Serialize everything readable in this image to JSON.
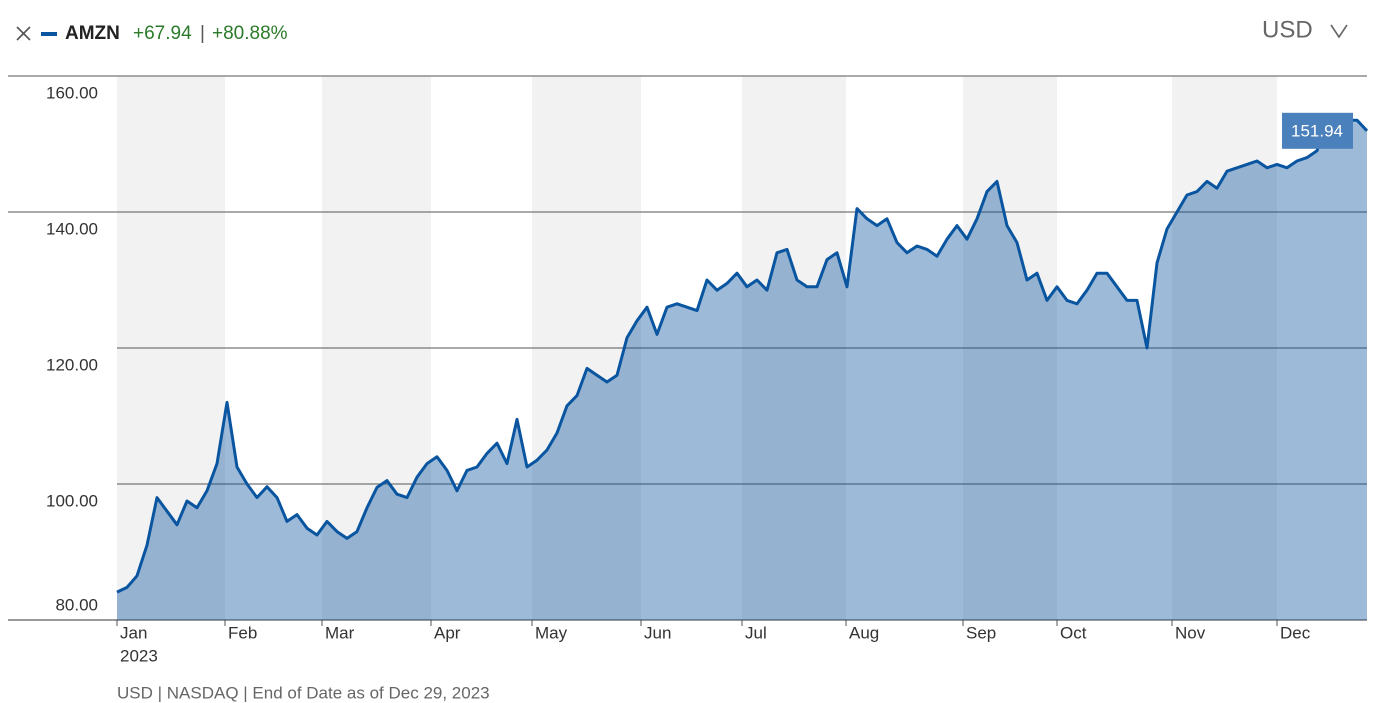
{
  "chart_data": {
    "type": "area-line",
    "series": [
      {
        "name": "AMZN",
        "color": "#0a55a0",
        "values": [
          84.1,
          84.8,
          86.5,
          91,
          98,
          96,
          94,
          97.5,
          96.5,
          99,
          103,
          112,
          102.5,
          100,
          98,
          99.6,
          98,
          94.5,
          95.5,
          93.5,
          92.5,
          94.5,
          93,
          92,
          93,
          96.5,
          99.5,
          100.5,
          98.5,
          98,
          101,
          103,
          104,
          102,
          99,
          102,
          102.5,
          104.5,
          106,
          103,
          109.5,
          102.5,
          103.5,
          105,
          107.5,
          111.5,
          113,
          117,
          116,
          115,
          116,
          121.5,
          124,
          126,
          122,
          126,
          126.5,
          126,
          125.5,
          130,
          128.5,
          129.5,
          131,
          129,
          130,
          128.5,
          134,
          134.5,
          130,
          129,
          129,
          133,
          134,
          129,
          140.5,
          139,
          138,
          139,
          135.5,
          134,
          135,
          134.5,
          133.5,
          136,
          138,
          136,
          139,
          143,
          144.5,
          138,
          135.5,
          130,
          131,
          127,
          129,
          127,
          126.5,
          128.5,
          131,
          131,
          129,
          127,
          127,
          120,
          132.5,
          137.5,
          140,
          142.5,
          143,
          144.5,
          143.5,
          146,
          146.5,
          147,
          147.5,
          146.5,
          147,
          146.5,
          147.5,
          148,
          149,
          154,
          153,
          153.5,
          153.5,
          151.94
        ]
      }
    ],
    "change": "+67.94",
    "separator": "|",
    "change_pct": "+80.88%",
    "currency": "USD",
    "year_label": "2023",
    "footnote": "USD | NASDAQ | End of Date as of Dec 29, 2023",
    "xlim": [
      0,
      125
    ],
    "xticks": [
      {
        "value": 0,
        "label": "Jan"
      },
      {
        "value": 10.8,
        "label": "Feb"
      },
      {
        "value": 20.5,
        "label": "Mar"
      },
      {
        "value": 31.4,
        "label": "Apr"
      },
      {
        "value": 41.5,
        "label": "May"
      },
      {
        "value": 52.4,
        "label": "Jun"
      },
      {
        "value": 62.5,
        "label": "Jul"
      },
      {
        "value": 72.9,
        "label": "Aug"
      },
      {
        "value": 84.6,
        "label": "Sep"
      },
      {
        "value": 94,
        "label": "Oct"
      },
      {
        "value": 105.5,
        "label": "Nov"
      },
      {
        "value": 116,
        "label": "Dec"
      }
    ],
    "ylim": [
      80,
      160
    ],
    "yticks": [
      {
        "value": 80,
        "label": "80.00"
      },
      {
        "value": 100,
        "label": "100.00"
      },
      {
        "value": 120,
        "label": "120.00"
      },
      {
        "value": 140,
        "label": "140.00"
      },
      {
        "value": 160,
        "label": "160.00"
      }
    ],
    "grid": true
  }
}
